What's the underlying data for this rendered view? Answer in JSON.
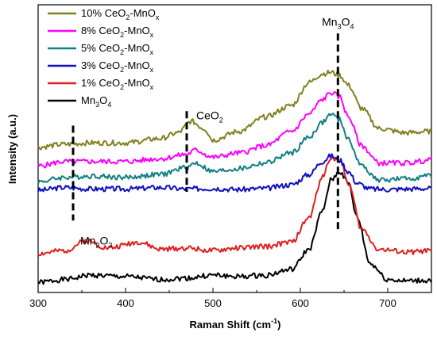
{
  "chart_data": {
    "type": "line",
    "title": "",
    "xlabel": "Raman Shift (cm",
    "xlabel_sup": "-1",
    "xlabel_end": ")",
    "ylabel": "Intensity (a.u.)",
    "xlim": [
      300,
      750
    ],
    "ylim": [
      0,
      10
    ],
    "xticks": [
      300,
      400,
      500,
      600,
      700
    ],
    "grid": false,
    "legend_position": "top-left",
    "series": [
      {
        "name": "Mn3O4",
        "name_parts": {
          "base": "Mn",
          "sub": "3",
          "rest": "O",
          "sub2": "4"
        },
        "color": "#000000",
        "x": [
          300,
          330,
          360,
          400,
          440,
          470,
          500,
          530,
          560,
          590,
          610,
          625,
          635,
          645,
          655,
          665,
          680,
          700,
          720,
          750
        ],
        "y": [
          0.35,
          0.45,
          0.6,
          0.55,
          0.45,
          0.5,
          0.6,
          0.55,
          0.6,
          0.8,
          1.5,
          2.8,
          3.9,
          4.2,
          3.8,
          2.6,
          1.0,
          0.45,
          0.4,
          0.42
        ]
      },
      {
        "name": "1% CeO2-MnOx",
        "name_parts": {
          "base": "1% CeO",
          "sub": "2",
          "rest": "-MnO",
          "sub2": "x"
        },
        "color": "#e02020",
        "x": [
          300,
          330,
          355,
          380,
          415,
          440,
          470,
          500,
          530,
          560,
          590,
          610,
          625,
          635,
          645,
          655,
          670,
          690,
          720,
          750
        ],
        "y": [
          1.35,
          1.45,
          1.8,
          1.55,
          1.75,
          1.5,
          1.55,
          1.45,
          1.55,
          1.6,
          1.75,
          2.6,
          4.0,
          4.7,
          4.6,
          3.8,
          2.2,
          1.5,
          1.4,
          1.45
        ]
      },
      {
        "name": "3% CeO2-MnOx",
        "name_parts": {
          "base": "3% CeO",
          "sub": "2",
          "rest": "-MnO",
          "sub2": "x"
        },
        "color": "#1010c0",
        "x": [
          300,
          330,
          360,
          400,
          440,
          470,
          500,
          530,
          560,
          590,
          610,
          625,
          635,
          645,
          655,
          665,
          680,
          700,
          720,
          750
        ],
        "y": [
          3.55,
          3.65,
          3.6,
          3.6,
          3.65,
          3.6,
          3.62,
          3.58,
          3.62,
          3.75,
          4.1,
          4.55,
          4.75,
          4.6,
          4.2,
          3.8,
          3.6,
          3.58,
          3.6,
          3.62
        ]
      },
      {
        "name": "5% CeO2-MnOx",
        "name_parts": {
          "base": "5% CeO",
          "sub": "2",
          "rest": "-MnO",
          "sub2": "x"
        },
        "color": "#128080",
        "x": [
          300,
          330,
          360,
          400,
          440,
          470,
          480,
          500,
          530,
          560,
          590,
          610,
          625,
          635,
          645,
          655,
          670,
          690,
          720,
          750
        ],
        "y": [
          3.85,
          4.0,
          4.05,
          4.0,
          4.1,
          4.35,
          4.5,
          4.2,
          4.3,
          4.5,
          4.85,
          5.4,
          5.9,
          6.2,
          6.0,
          5.3,
          4.4,
          3.9,
          3.95,
          4.05
        ]
      },
      {
        "name": "8% CeO2-MnOx",
        "name_parts": {
          "base": "8% CeO",
          "sub": "2",
          "rest": "-MnO",
          "sub2": "x"
        },
        "color": "#ff00ff",
        "x": [
          300,
          330,
          360,
          400,
          440,
          470,
          480,
          500,
          530,
          560,
          590,
          610,
          625,
          635,
          645,
          655,
          670,
          690,
          720,
          750
        ],
        "y": [
          4.4,
          4.55,
          4.55,
          4.55,
          4.65,
          4.8,
          4.95,
          4.7,
          4.85,
          5.1,
          5.6,
          6.2,
          6.7,
          6.95,
          6.8,
          6.1,
          5.1,
          4.5,
          4.5,
          4.6
        ]
      },
      {
        "name": "10% CeO2-MnOx",
        "name_parts": {
          "base": "10% CeO",
          "sub": "2",
          "rest": "-MnO",
          "sub2": "x"
        },
        "color": "#808020",
        "x": [
          300,
          330,
          360,
          400,
          440,
          460,
          475,
          490,
          500,
          530,
          560,
          590,
          610,
          625,
          635,
          645,
          655,
          670,
          690,
          720,
          750
        ],
        "y": [
          5.05,
          5.15,
          5.2,
          5.2,
          5.35,
          5.55,
          5.95,
          5.7,
          5.3,
          5.6,
          6.1,
          6.5,
          7.3,
          7.6,
          7.65,
          7.55,
          7.2,
          6.4,
          5.7,
          5.55,
          5.6
        ]
      }
    ],
    "annotations": [
      {
        "label_parts": {
          "base": "Mn",
          "sub": "3",
          "rest": "O",
          "sub2": "4"
        },
        "x": 643,
        "y_top": 9.0,
        "y_bottom": 2.2,
        "label_pos": "above"
      },
      {
        "label_parts": {
          "base": "CeO",
          "sub": "2",
          "rest": "",
          "sub2": ""
        },
        "x": 470,
        "y_top": 6.3,
        "y_bottom": 3.5,
        "label_pos": "right"
      },
      {
        "label_parts": {
          "base": "Mn",
          "sub": "2",
          "rest": "O",
          "sub2": "3"
        },
        "x": 340,
        "y_top": 5.8,
        "y_bottom": 2.5,
        "label_pos": "below"
      }
    ]
  }
}
